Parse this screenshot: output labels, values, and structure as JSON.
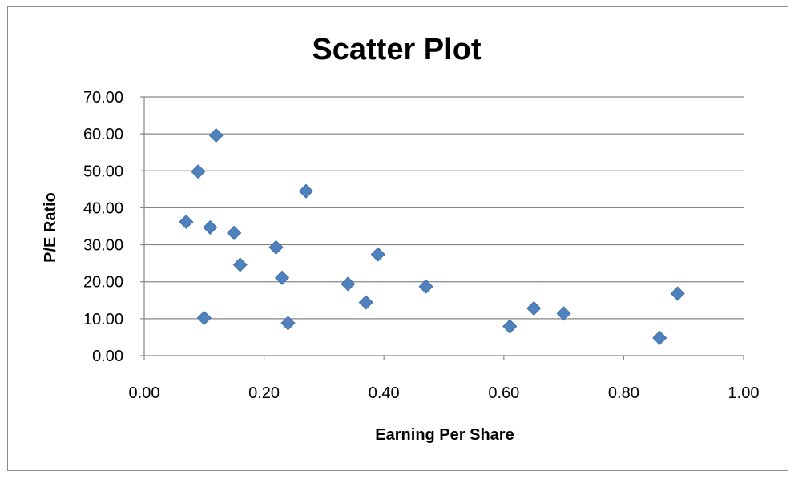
{
  "chart_data": {
    "type": "scatter",
    "title": "Scatter Plot",
    "xlabel": "Earning Per Share",
    "ylabel": "P/E Ratio",
    "xlim": [
      0,
      1
    ],
    "ylim": [
      0,
      70
    ],
    "x_ticks": [
      "0.00",
      "0.20",
      "0.40",
      "0.60",
      "0.80",
      "1.00"
    ],
    "y_ticks": [
      "0.00",
      "10.00",
      "20.00",
      "30.00",
      "40.00",
      "50.00",
      "60.00",
      "70.00"
    ],
    "grid": "horizontal",
    "legend": "none",
    "marker": "diamond",
    "marker_color": "#4f81bd",
    "series": [
      {
        "points": [
          {
            "x": 0.07,
            "y": 36.2
          },
          {
            "x": 0.09,
            "y": 49.8
          },
          {
            "x": 0.1,
            "y": 10.2
          },
          {
            "x": 0.11,
            "y": 34.7
          },
          {
            "x": 0.12,
            "y": 59.6
          },
          {
            "x": 0.15,
            "y": 33.2
          },
          {
            "x": 0.16,
            "y": 24.6
          },
          {
            "x": 0.22,
            "y": 29.3
          },
          {
            "x": 0.23,
            "y": 21.1
          },
          {
            "x": 0.24,
            "y": 8.8
          },
          {
            "x": 0.27,
            "y": 44.5
          },
          {
            "x": 0.34,
            "y": 19.4
          },
          {
            "x": 0.37,
            "y": 14.4
          },
          {
            "x": 0.39,
            "y": 27.4
          },
          {
            "x": 0.47,
            "y": 18.7
          },
          {
            "x": 0.61,
            "y": 7.9
          },
          {
            "x": 0.65,
            "y": 12.8
          },
          {
            "x": 0.7,
            "y": 11.4
          },
          {
            "x": 0.86,
            "y": 4.8
          },
          {
            "x": 0.89,
            "y": 16.8
          }
        ]
      }
    ]
  }
}
